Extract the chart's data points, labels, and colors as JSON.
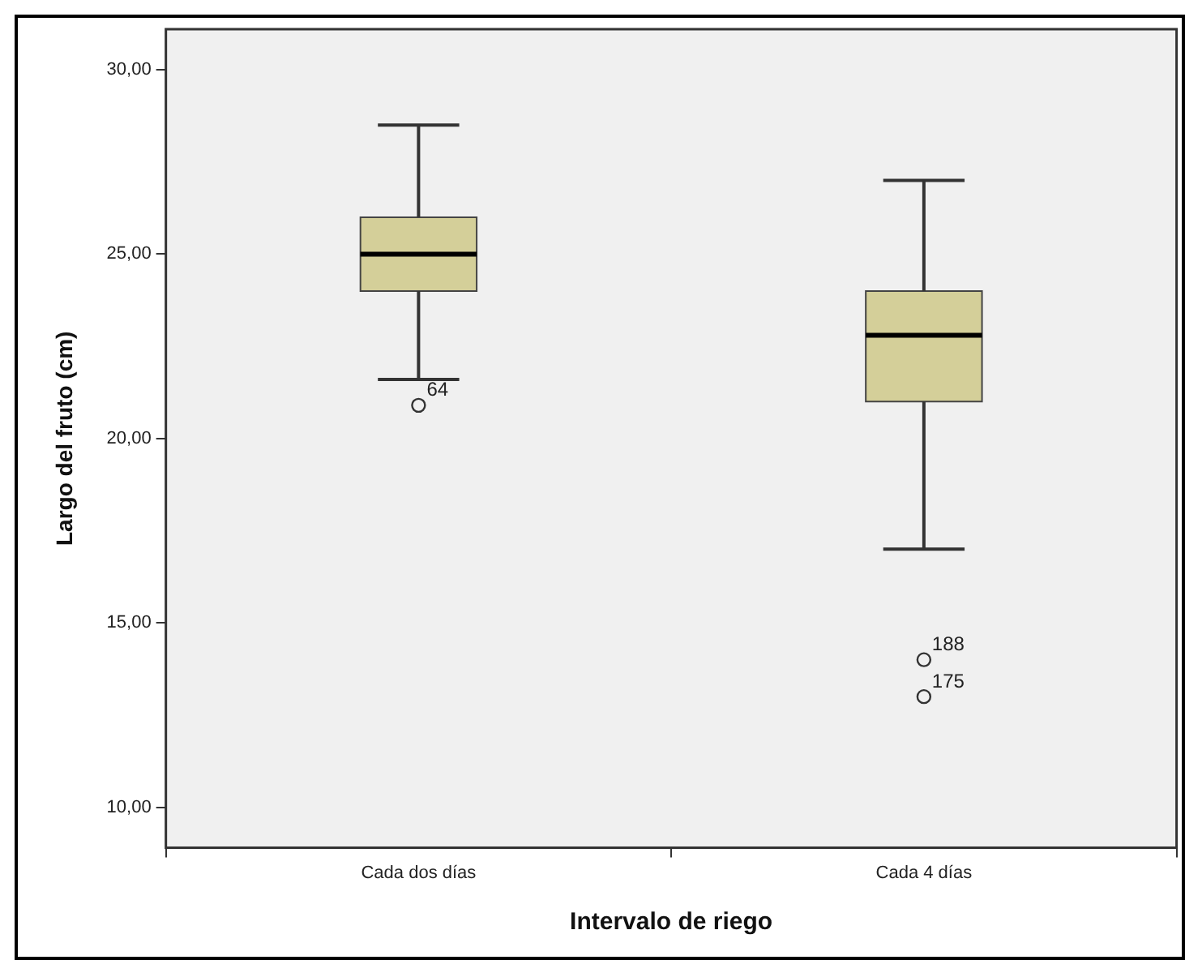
{
  "chart_data": {
    "type": "box",
    "xlabel": "Intervalo de riego",
    "ylabel": "Largo del fruto (cm)",
    "categories": [
      "Cada dos días",
      "Cada 4 días"
    ],
    "boxes": [
      {
        "low": 21.6,
        "q1": 24.0,
        "median": 25.0,
        "q3": 26.0,
        "high": 28.5,
        "outliers": [
          20.9
        ]
      },
      {
        "low": 17.0,
        "q1": 21.0,
        "median": 22.8,
        "q3": 24.0,
        "high": 27.0,
        "outliers": [
          14.0,
          13.0
        ]
      }
    ],
    "color": "#d4cf99",
    "ylim": [
      8.9,
      31.1
    ],
    "yticks": [
      {
        "value": 10,
        "label": "10,00"
      },
      {
        "value": 15,
        "label": "15,00"
      },
      {
        "value": 20,
        "label": "20,00"
      },
      {
        "value": 25,
        "label": "25,00"
      },
      {
        "value": 30,
        "label": "30,00"
      }
    ],
    "grid": false,
    "legend": false,
    "annotations": [
      "64",
      "188",
      "175"
    ]
  }
}
